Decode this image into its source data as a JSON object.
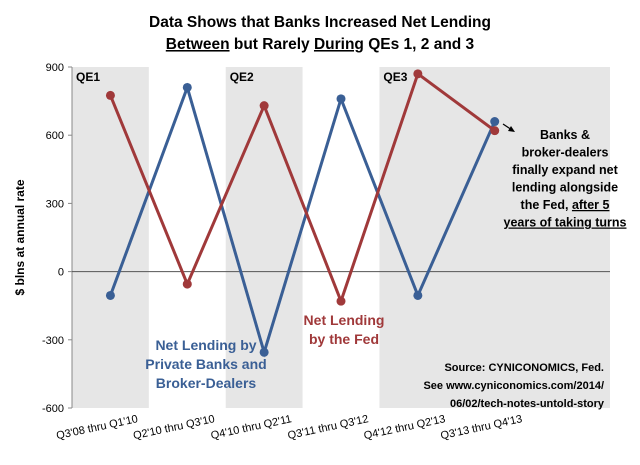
{
  "chart_data": {
    "type": "line",
    "title_line1": "Data Shows that Banks Increased Net Lending",
    "title_line2_parts": [
      {
        "text": "Between",
        "underline": true
      },
      {
        "text": " but Rarely ",
        "underline": false
      },
      {
        "text": "During",
        "underline": true
      },
      {
        "text": " QEs 1, 2 and 3",
        "underline": false
      }
    ],
    "ylabel": "$ blns at annual rate",
    "ylim": [
      -600,
      900
    ],
    "yticks": [
      "900",
      "600",
      "300",
      "0",
      "-300",
      "-600"
    ],
    "ytick_values": [
      900,
      600,
      300,
      0,
      -300,
      -600
    ],
    "categories": [
      "Q3'08 thru Q1'10",
      "Q2'10 thru Q3'10",
      "Q4'10 thru Q2'11",
      "Q3'11 thru Q3'12",
      "Q4'12 thru Q2'13",
      "Q3'13 thru Q4'13"
    ],
    "slots": 7,
    "shaded_regions": [
      {
        "label": "QE1",
        "from_slot": 0,
        "to_slot": 1
      },
      {
        "label": "QE2",
        "from_slot": 2,
        "to_slot": 3
      },
      {
        "label": "QE3",
        "from_slot": 4,
        "to_slot": 7
      }
    ],
    "series": [
      {
        "name": "Net Lending by Private Banks and Broker-Dealers",
        "label_lines": [
          "Net Lending by",
          "Private Banks and",
          "Broker-Dealers"
        ],
        "color": "#3A5F95",
        "values": [
          -105,
          810,
          -355,
          760,
          -105,
          660
        ]
      },
      {
        "name": "Net Lending by the Fed",
        "label_lines": [
          "Net Lending",
          "by the Fed"
        ],
        "color": "#A0393A",
        "values": [
          775,
          -55,
          730,
          -130,
          870,
          620
        ]
      }
    ],
    "annotation_lines": [
      [
        {
          "text": "Banks &",
          "underline": false
        }
      ],
      [
        {
          "text": "broker-dealers",
          "underline": false
        }
      ],
      [
        {
          "text": "finally expand net",
          "underline": false
        }
      ],
      [
        {
          "text": "lending alongside",
          "underline": false
        }
      ],
      [
        {
          "text": "the Fed, ",
          "underline": false
        },
        {
          "text": "after 5",
          "underline": true
        }
      ],
      [
        {
          "text": "years of taking turns",
          "underline": true
        }
      ]
    ],
    "source_lines": [
      "Source:  CYNICONOMICS, Fed.",
      "See www.cyniconomics.com/2014/",
      "06/02/tech-notes-untold-story"
    ],
    "shade_color": "#E6E6E6"
  }
}
